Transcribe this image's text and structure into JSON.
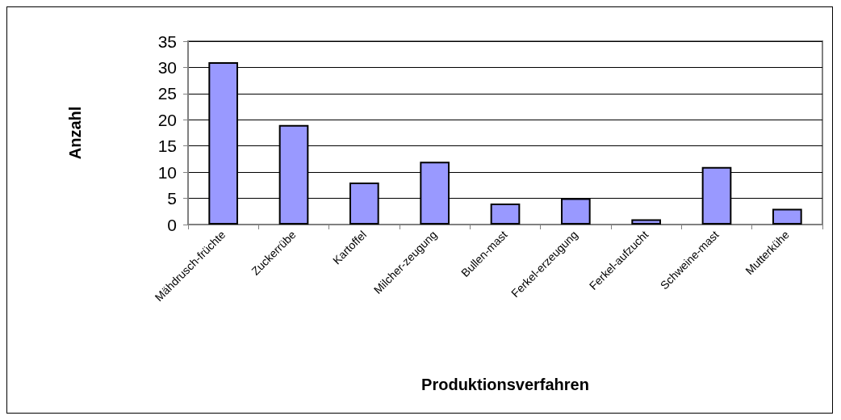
{
  "chart_data": {
    "type": "bar",
    "xlabel": "Produktionsverfahren",
    "ylabel": "Anzahl",
    "categories": [
      "Mähdrusch-früchte",
      "Zuckerrübe",
      "Kartoffel",
      "Milcher-zeugung",
      "Bullen-mast",
      "Ferkel-erzeugung",
      "Ferkel-aufzucht",
      "Schweine-mast",
      "Mutterkühe"
    ],
    "values": [
      31,
      19,
      8,
      12,
      4,
      5,
      1,
      11,
      3
    ],
    "color": "#9999ff",
    "ylim": [
      0,
      35
    ],
    "yticks": [
      0,
      5,
      10,
      15,
      20,
      25,
      30,
      35
    ],
    "grid": "y"
  }
}
